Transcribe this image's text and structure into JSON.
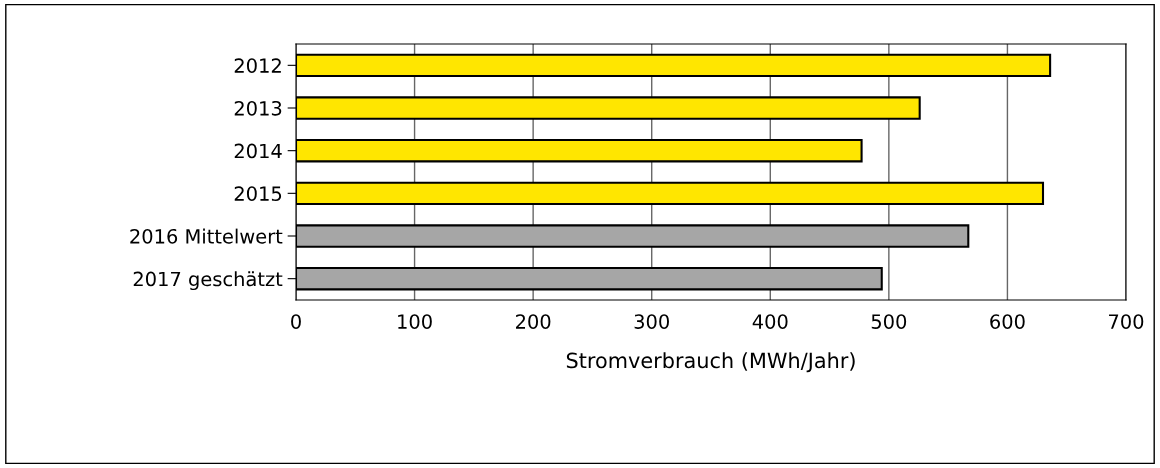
{
  "chart_data": {
    "type": "bar",
    "orientation": "horizontal",
    "xlabel": "Stromverbrauch (MWh/Jahr)",
    "categories": [
      "2012",
      "2013",
      "2014",
      "2015",
      "2016 Mittelwert",
      "2017 geschätzt"
    ],
    "values": [
      636,
      526,
      477,
      630,
      567,
      494
    ],
    "colors": [
      "#ffe600",
      "#ffe600",
      "#ffe600",
      "#ffe600",
      "#a6a6a6",
      "#a6a6a6"
    ],
    "xlim": [
      0,
      700
    ],
    "xticks": [
      0,
      100,
      200,
      300,
      400,
      500,
      600,
      700
    ],
    "grid": "x"
  }
}
